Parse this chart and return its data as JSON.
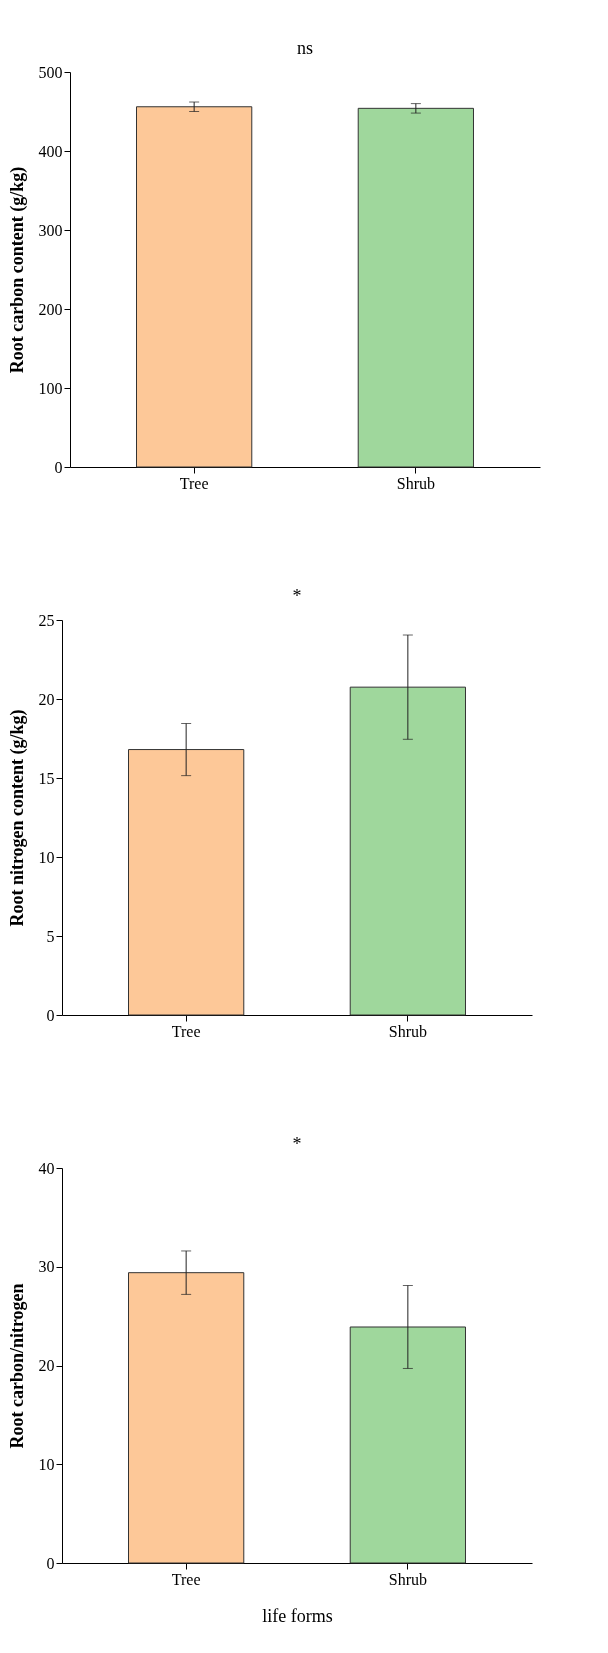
{
  "chart_data": [
    {
      "type": "bar",
      "ylabel": "Root carbon content (g/kg)",
      "categories": [
        "Tree",
        "Shrub"
      ],
      "colors": [
        "#fdc898",
        "#9fd79c"
      ],
      "values": [
        456,
        454
      ],
      "errors": [
        6,
        6
      ],
      "ylim": [
        0,
        500
      ],
      "yticks": [
        0,
        100,
        200,
        300,
        400,
        500
      ],
      "annotations": [
        "ns"
      ]
    },
    {
      "type": "bar",
      "ylabel": "Root nitrogen content (g/kg)",
      "categories": [
        "Tree",
        "Shrub"
      ],
      "colors": [
        "#fdc898",
        "#9fd79c"
      ],
      "values": [
        16.8,
        20.75
      ],
      "errors": [
        1.65,
        3.3
      ],
      "ylim": [
        0,
        25
      ],
      "yticks": [
        0,
        5,
        10,
        15,
        20,
        25
      ],
      "annotations": [
        "*"
      ]
    },
    {
      "type": "bar",
      "ylabel": "Root carbon/nitrogen",
      "xlabel": "life forms",
      "categories": [
        "Tree",
        "Shrub"
      ],
      "colors": [
        "#fdc898",
        "#9fd79c"
      ],
      "values": [
        29.4,
        23.9
      ],
      "errors": [
        2.2,
        4.2
      ],
      "ylim": [
        0,
        40
      ],
      "yticks": [
        0,
        10,
        20,
        30,
        40
      ],
      "annotations": [
        "*"
      ]
    }
  ]
}
